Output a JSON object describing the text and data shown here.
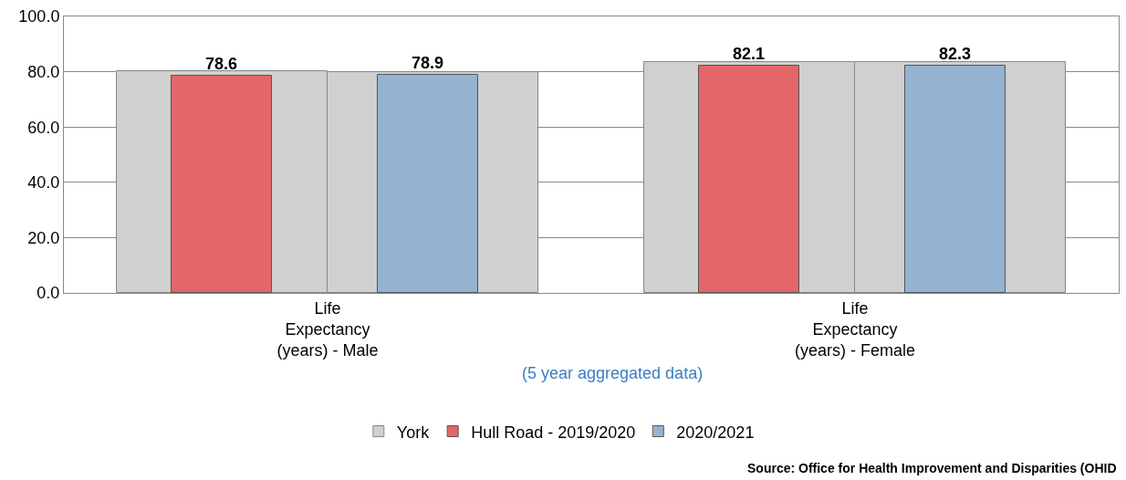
{
  "chart_data": {
    "type": "bar",
    "categories": [
      "Life\nExpectancy\n(years) - Male",
      "Life\nExpectancy\n(years) - Female"
    ],
    "series": [
      {
        "name": "York",
        "color": "#d0d0d0",
        "values": [
          80.2,
          83.5
        ]
      },
      {
        "color": "#d0d0d0",
        "values": [
          80.0,
          83.5
        ]
      },
      {
        "name": "Hull Road - 2019/2020",
        "color": "#e46668",
        "values": [
          78.6,
          82.1
        ],
        "value_labels": [
          "78.6",
          "82.1"
        ]
      },
      {
        "name": "2020/2021",
        "color": "#95b3d3",
        "values": [
          78.9,
          82.3
        ],
        "value_labels": [
          "78.9",
          "82.3"
        ]
      }
    ],
    "ylim": [
      0,
      100
    ],
    "yticks": [
      {
        "value": 0,
        "label": "0.0"
      },
      {
        "value": 20,
        "label": "20.0"
      },
      {
        "value": 40,
        "label": "40.0"
      },
      {
        "value": 60,
        "label": "60.0"
      },
      {
        "value": 80,
        "label": "80.0"
      },
      {
        "value": 100,
        "label": "100.0"
      }
    ],
    "grid": "y",
    "legend": "bottom",
    "annotations": [
      "(5 year aggregated data)",
      "Source: Office for Health Improvement and Disparities (OHID"
    ]
  }
}
